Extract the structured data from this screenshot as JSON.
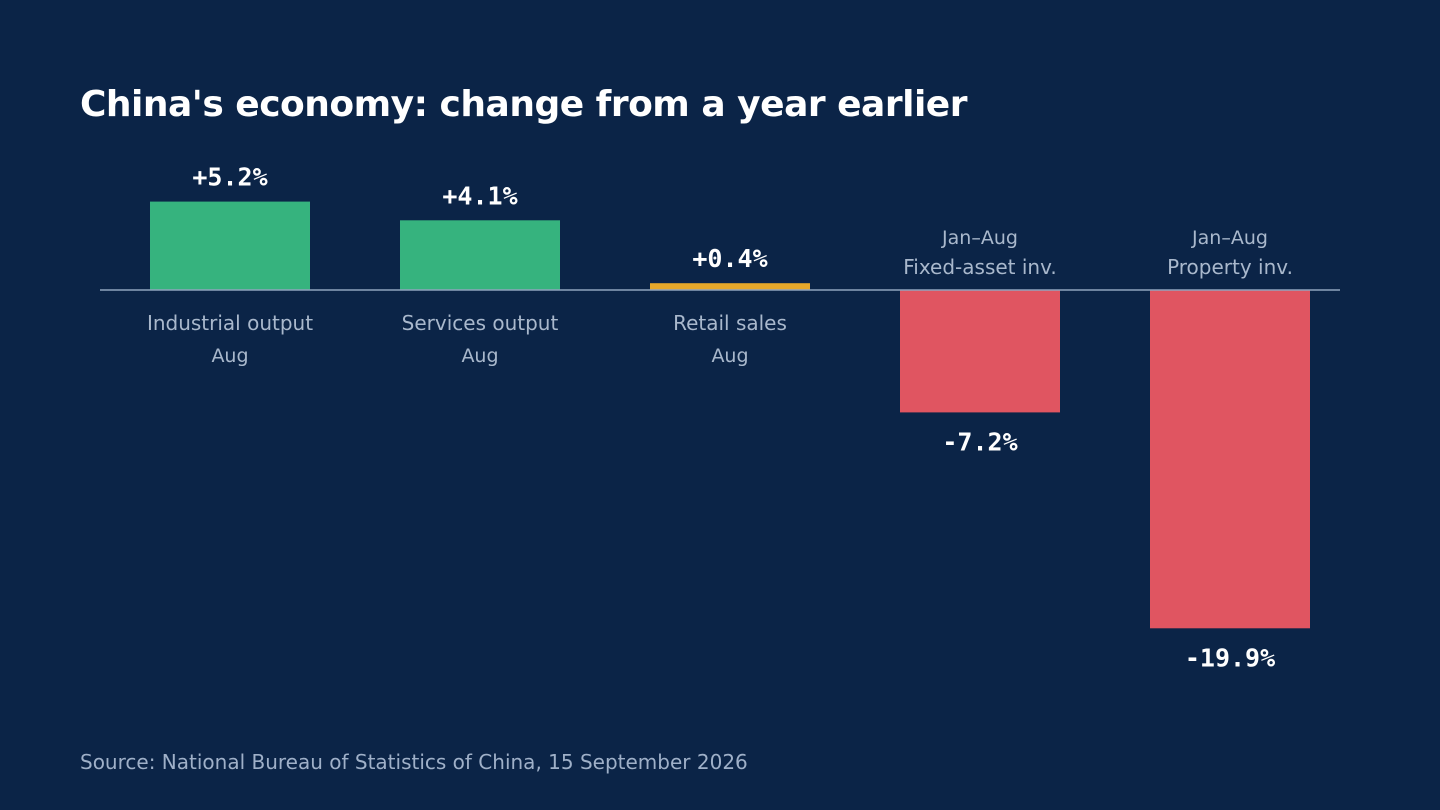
{
  "title": "China's economy: change from a year earlier",
  "source": "Source: National Bureau of Statistics of China, 15 September 2026",
  "colors": {
    "background": "#0b2447",
    "positive": "#36b37e",
    "neutral": "#e6a82a",
    "negative": "#e05561",
    "baseline": "#8fa3bd"
  },
  "chart_data": {
    "type": "bar",
    "title": "China's economy: change from a year earlier",
    "xlabel": "",
    "ylabel": "",
    "grid": false,
    "categories": [
      "Industrial output",
      "Services output",
      "Retail sales",
      "Fixed-asset inv.",
      "Property inv."
    ],
    "periods": [
      "Aug",
      "Aug",
      "Aug",
      "Jan–Aug",
      "Jan–Aug"
    ],
    "values": [
      5.2,
      4.1,
      0.4,
      -7.2,
      -19.9
    ],
    "value_labels": [
      "+5.2%",
      "+4.1%",
      "+0.4%",
      "-7.2%",
      "-19.9%"
    ],
    "bar_colors": [
      "#36b37e",
      "#36b37e",
      "#e6a82a",
      "#e05561",
      "#e05561"
    ],
    "ylim": [
      -19.9,
      5.2
    ]
  }
}
